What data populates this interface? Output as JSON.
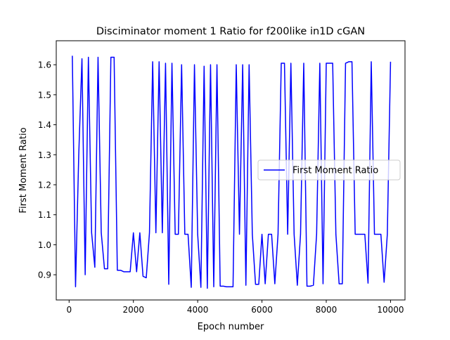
{
  "chart_data": {
    "type": "line",
    "title": "Disciminator moment 1 Ratio for f200like in1D cGAN",
    "xlabel": "Epoch number",
    "ylabel": "First Moment Ratio",
    "xlim": [
      -400,
      10450
    ],
    "ylim": [
      0.816,
      1.68
    ],
    "xticks": [
      0,
      2000,
      4000,
      6000,
      8000,
      10000
    ],
    "yticks": [
      0.9,
      1.0,
      1.1,
      1.2,
      1.3,
      1.4,
      1.5,
      1.6
    ],
    "grid": false,
    "legend_position": "center-right",
    "series": [
      {
        "name": "First Moment Ratio",
        "color": "#0000ff",
        "x": [
          100,
          200,
          300,
          400,
          500,
          600,
          700,
          800,
          900,
          1000,
          1100,
          1200,
          1300,
          1400,
          1500,
          1600,
          1700,
          1800,
          1900,
          2000,
          2100,
          2200,
          2300,
          2400,
          2500,
          2600,
          2700,
          2800,
          2900,
          3000,
          3100,
          3200,
          3300,
          3400,
          3500,
          3600,
          3700,
          3800,
          3900,
          4000,
          4100,
          4200,
          4300,
          4400,
          4500,
          4600,
          4700,
          4800,
          4900,
          5000,
          5100,
          5200,
          5300,
          5400,
          5500,
          5600,
          5700,
          5800,
          5900,
          6000,
          6100,
          6200,
          6300,
          6400,
          6500,
          6600,
          6700,
          6800,
          6900,
          7000,
          7100,
          7200,
          7300,
          7400,
          7500,
          7600,
          7700,
          7800,
          7900,
          8000,
          8100,
          8200,
          8300,
          8400,
          8500,
          8600,
          8700,
          8800,
          8900,
          9000,
          9100,
          9200,
          9300,
          9400,
          9500,
          9600,
          9700,
          9800,
          9900,
          10000
        ],
        "y": [
          1.63,
          0.86,
          1.3,
          1.62,
          0.9,
          1.625,
          1.04,
          0.925,
          1.625,
          1.04,
          0.92,
          0.92,
          1.625,
          1.625,
          0.915,
          0.915,
          0.91,
          0.91,
          0.91,
          1.04,
          0.91,
          1.04,
          0.895,
          0.89,
          1.04,
          1.61,
          1.04,
          1.61,
          1.04,
          1.605,
          0.868,
          1.605,
          1.035,
          1.035,
          1.6,
          1.035,
          1.035,
          0.858,
          1.6,
          1.035,
          0.858,
          1.595,
          0.855,
          1.6,
          0.86,
          1.6,
          0.862,
          0.862,
          0.86,
          0.86,
          0.86,
          1.6,
          1.035,
          1.6,
          0.865,
          1.6,
          1.035,
          0.868,
          0.868,
          1.035,
          0.87,
          1.035,
          1.035,
          0.87,
          1.035,
          1.605,
          1.605,
          1.035,
          1.605,
          1.035,
          0.865,
          1.035,
          1.605,
          0.862,
          0.862,
          0.865,
          1.035,
          1.605,
          0.87,
          1.605,
          1.605,
          1.605,
          1.035,
          0.87,
          0.87,
          1.605,
          1.61,
          1.61,
          1.035,
          1.035,
          1.035,
          1.035,
          0.872,
          1.61,
          1.035,
          1.035,
          1.035,
          0.875,
          1.035,
          1.61
        ]
      }
    ]
  }
}
